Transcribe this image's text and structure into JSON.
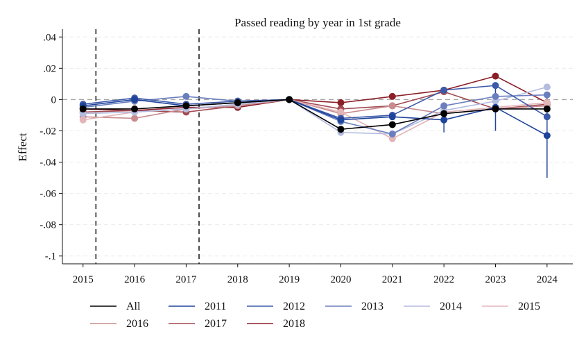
{
  "chart_data": {
    "type": "line",
    "title": "Passed reading by year in 1st grade",
    "ylabel": "Effect",
    "xlabel": "",
    "x": [
      2015,
      2016,
      2017,
      2018,
      2019,
      2020,
      2021,
      2022,
      2023,
      2024
    ],
    "x_tick_labels": [
      "2015",
      "2016",
      "2017",
      "2018",
      "2019",
      "2020",
      "2021",
      "2022",
      "2023",
      "2024"
    ],
    "xlim": [
      2014.6,
      2024.5
    ],
    "ylim": [
      -0.105,
      0.045
    ],
    "y_ticks": [
      0.04,
      0.02,
      0,
      -0.02,
      -0.04,
      -0.06,
      -0.08,
      -0.1
    ],
    "y_tick_labels": [
      ".04",
      ".02",
      "0",
      "-.02",
      "-.04",
      "-.06",
      "-.08",
      "-.1"
    ],
    "grid": true,
    "zero_line": true,
    "vlines": [
      2015.25,
      2017.25
    ],
    "legend_position": "bottom",
    "series": [
      {
        "name": "All",
        "color": "#000000",
        "values": [
          -0.006,
          -0.006,
          -0.004,
          -0.002,
          0,
          -0.019,
          -0.016,
          -0.009,
          -0.006,
          -0.006
        ]
      },
      {
        "name": "2011",
        "color": "#1f449c",
        "values": [
          -0.004,
          0.0,
          -0.004,
          -0.002,
          0,
          -0.013,
          -0.011,
          -0.013,
          -0.005,
          -0.023
        ]
      },
      {
        "name": "2012",
        "color": "#3c5aa9",
        "values": [
          -0.003,
          0.001,
          -0.003,
          -0.001,
          0,
          -0.012,
          -0.01,
          0.006,
          0.009,
          -0.011
        ]
      },
      {
        "name": "2013",
        "color": "#6a7ebe",
        "values": [
          -0.005,
          -0.001,
          0.002,
          -0.001,
          0,
          -0.014,
          -0.022,
          -0.004,
          0.002,
          0.003
        ]
      },
      {
        "name": "2014",
        "color": "#b4bcdf",
        "values": [
          -0.009,
          -0.008,
          -0.006,
          -0.003,
          0,
          -0.021,
          -0.022,
          -0.007,
          -0.001,
          0.008
        ]
      },
      {
        "name": "2015",
        "color": "#e3b5b8",
        "values": [
          -0.013,
          -0.008,
          -0.006,
          -0.003,
          0,
          -0.008,
          -0.025,
          -0.008,
          -0.005,
          -0.002
        ]
      },
      {
        "name": "2016",
        "color": "#c98b8e",
        "values": [
          -0.011,
          -0.012,
          -0.006,
          -0.004,
          0,
          -0.009,
          -0.004,
          -0.009,
          -0.006,
          -0.004
        ]
      },
      {
        "name": "2017",
        "color": "#a04a52",
        "values": [
          -0.008,
          -0.007,
          -0.008,
          -0.004,
          0,
          -0.006,
          -0.004,
          0.005,
          -0.006,
          -0.003
        ]
      },
      {
        "name": "2018",
        "color": "#8b1f28",
        "values": [
          -0.006,
          -0.007,
          -0.005,
          -0.005,
          0,
          -0.002,
          0.002,
          0.006,
          0.015,
          -0.002
        ]
      }
    ],
    "error_bars": [
      {
        "series": "2011",
        "x": 2022,
        "low": -0.021,
        "high": -0.005
      },
      {
        "series": "2011",
        "x": 2023,
        "low": -0.02,
        "high": 0.009
      },
      {
        "series": "2011",
        "x": 2024,
        "low": -0.05,
        "high": 0.003
      },
      {
        "series": "2012",
        "x": 2024,
        "low": -0.02,
        "high": -0.002
      }
    ]
  }
}
